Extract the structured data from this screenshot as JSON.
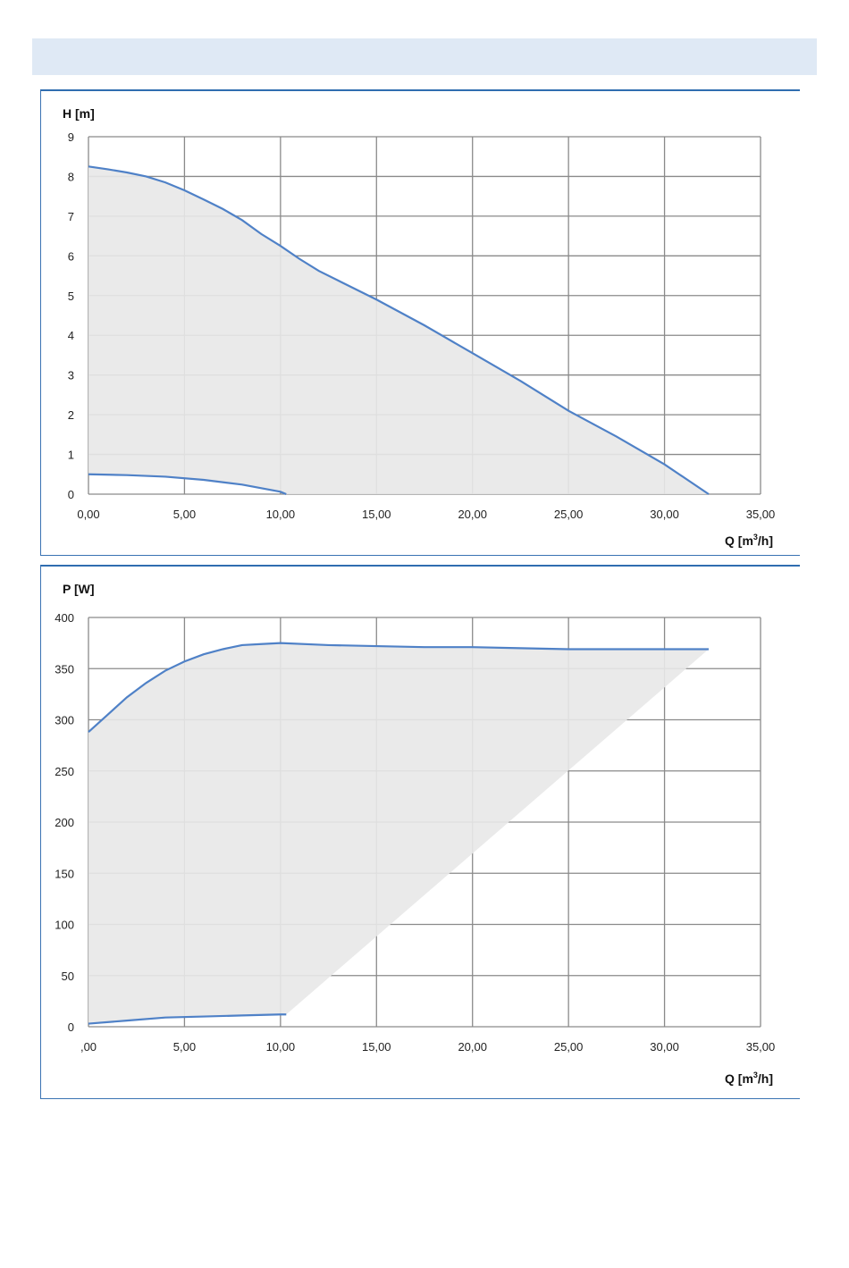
{
  "chart_data": [
    {
      "type": "area",
      "ylabel": "H [m]",
      "xlabel": "Q [m",
      "xlabel_sup": "3",
      "xlabel_tail": "/h]",
      "xlim": [
        0,
        35
      ],
      "ylim": [
        0,
        9
      ],
      "x_ticks": [
        0,
        5,
        10,
        15,
        20,
        25,
        30,
        35
      ],
      "x_tick_labels": [
        "0,00",
        "5,00",
        "10,00",
        "15,00",
        "20,00",
        "25,00",
        "30,00",
        "35,00"
      ],
      "y_ticks": [
        0,
        1,
        2,
        3,
        4,
        5,
        6,
        7,
        8,
        9
      ],
      "y_tick_labels": [
        "0",
        "1",
        "2",
        "3",
        "4",
        "5",
        "6",
        "7",
        "8",
        "9"
      ],
      "grid": true,
      "series": [
        {
          "x": [
            0,
            1,
            2,
            3,
            4,
            5,
            6,
            7,
            8,
            9,
            10,
            11,
            12,
            13,
            15,
            17.5,
            20,
            22.5,
            25,
            27.5,
            30,
            32.3
          ],
          "y": [
            8.25,
            8.18,
            8.1,
            8.0,
            7.85,
            7.65,
            7.42,
            7.18,
            6.9,
            6.55,
            6.25,
            5.92,
            5.62,
            5.38,
            4.9,
            4.25,
            3.55,
            2.85,
            2.1,
            1.45,
            0.75,
            0.0
          ]
        },
        {
          "x": [
            0,
            2,
            4,
            6,
            8,
            10,
            10.3
          ],
          "y": [
            0.5,
            0.48,
            0.44,
            0.36,
            0.24,
            0.06,
            0.0
          ]
        }
      ],
      "fill_color": "#e8e8e8",
      "line_color": "#4f81c7"
    },
    {
      "type": "area",
      "ylabel": "P [W]",
      "xlabel": "Q [m",
      "xlabel_sup": "3",
      "xlabel_tail": "/h]",
      "xlim": [
        0,
        35
      ],
      "ylim": [
        0,
        400
      ],
      "x_ticks": [
        0,
        5,
        10,
        15,
        20,
        25,
        30,
        35
      ],
      "x_tick_labels": [
        ",00",
        "5,00",
        "10,00",
        "15,00",
        "20,00",
        "25,00",
        "30,00",
        "35,00"
      ],
      "y_ticks": [
        0,
        50,
        100,
        150,
        200,
        250,
        300,
        350,
        400
      ],
      "y_tick_labels": [
        "0",
        "50",
        "100",
        "150",
        "200",
        "250",
        "300",
        "350",
        "400"
      ],
      "grid": true,
      "series": [
        {
          "x": [
            0,
            1,
            2,
            3,
            4,
            5,
            6,
            7,
            8,
            9,
            10,
            12.5,
            15,
            17.5,
            20,
            22.5,
            25,
            27.5,
            30,
            32.3
          ],
          "y": [
            288,
            305,
            322,
            336,
            348,
            357,
            364,
            369,
            373,
            374,
            375,
            373,
            372,
            371,
            371,
            370,
            369,
            369,
            369,
            369
          ]
        },
        {
          "x": [
            0,
            2,
            4,
            6,
            8,
            10,
            10.3
          ],
          "y": [
            3,
            6,
            9,
            10,
            11,
            12,
            12
          ]
        }
      ],
      "fill_color": "#e8e8e8",
      "line_color": "#4f81c7"
    }
  ]
}
